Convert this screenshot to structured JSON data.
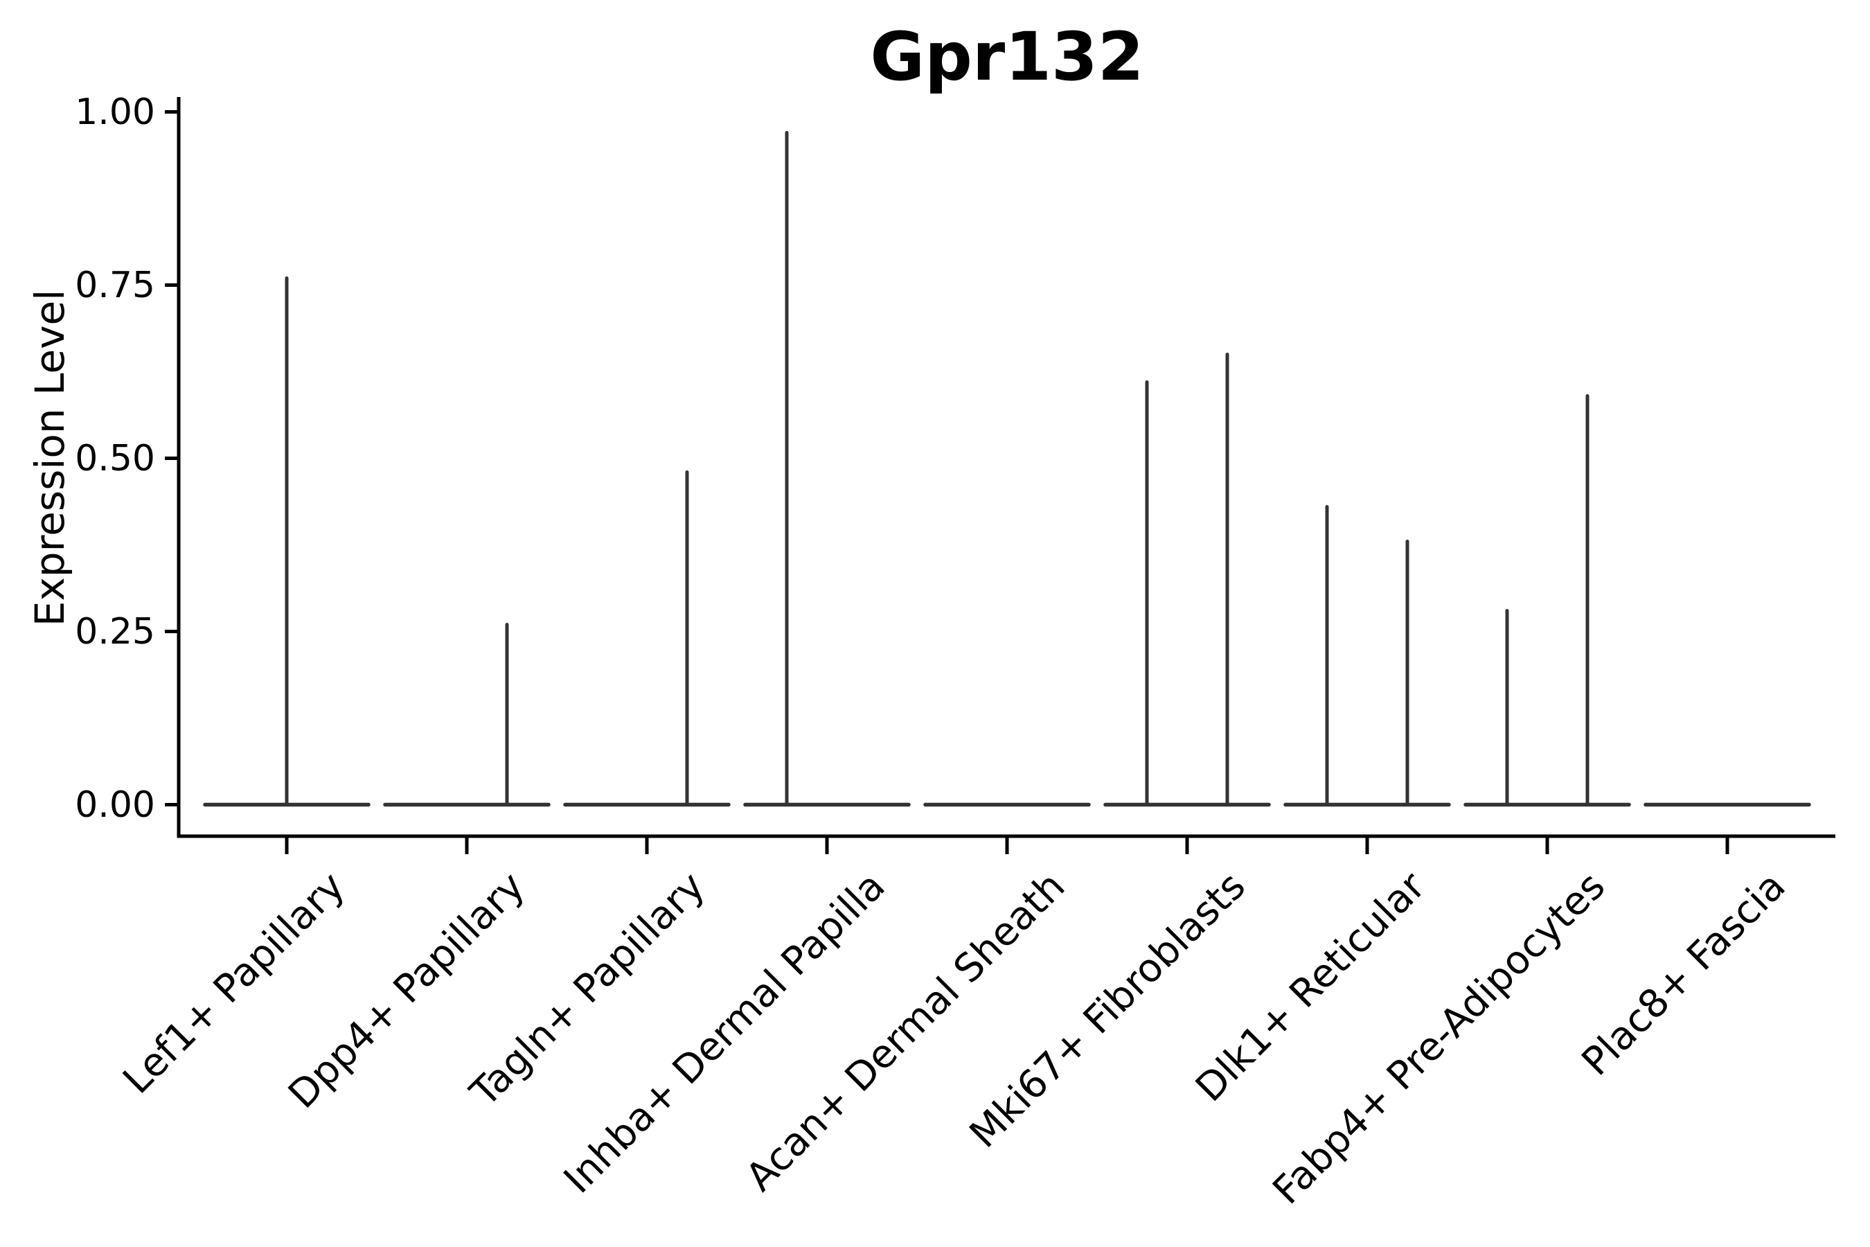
{
  "title": "Gpr132",
  "ylabel": "Expression Level",
  "colors": {
    "violin": "#333333",
    "axis": "#000000",
    "text": "#000000",
    "background": "#ffffff"
  },
  "chart_data": {
    "type": "violin",
    "title": "Gpr132",
    "xlabel": "",
    "ylabel": "Expression Level",
    "ylim": [
      0,
      1.0
    ],
    "yticks": [
      0.0,
      0.25,
      0.5,
      0.75,
      1.0
    ],
    "ytick_labels": [
      "0.00",
      "0.25",
      "0.50",
      "0.75",
      "1.00"
    ],
    "grid": false,
    "legend": false,
    "style_note": "Expression concentrated at 0: each violin collapses to a flat bar at y=0 with a thin vertical tail rising to the group's maximum; some categories contain two side-by-side sub-violins (left/right), each with its own tail.",
    "categories": [
      "Lef1+ Papillary",
      "Dpp4+ Papillary",
      "Tagln+ Papillary",
      "Inhba+ Dermal Papilla",
      "Acan+ Dermal Sheath",
      "Mki67+ Fibroblasts",
      "Dlk1+ Reticular",
      "Fabp4+ Pre-Adipocytes",
      "Plac8+ Fascia"
    ],
    "series": [
      {
        "category": "Lef1+ Papillary",
        "baseline": 0,
        "spikes": [
          {
            "offset": "center",
            "max": 0.76
          }
        ]
      },
      {
        "category": "Dpp4+ Papillary",
        "baseline": 0,
        "spikes": [
          {
            "offset": "right",
            "max": 0.26
          }
        ]
      },
      {
        "category": "Tagln+ Papillary",
        "baseline": 0,
        "spikes": [
          {
            "offset": "right",
            "max": 0.48
          }
        ]
      },
      {
        "category": "Inhba+ Dermal Papilla",
        "baseline": 0,
        "spikes": [
          {
            "offset": "left",
            "max": 0.97
          }
        ]
      },
      {
        "category": "Acan+ Dermal Sheath",
        "baseline": 0,
        "spikes": []
      },
      {
        "category": "Mki67+ Fibroblasts",
        "baseline": 0,
        "spikes": [
          {
            "offset": "left",
            "max": 0.61
          },
          {
            "offset": "right",
            "max": 0.65
          }
        ]
      },
      {
        "category": "Dlk1+ Reticular",
        "baseline": 0,
        "spikes": [
          {
            "offset": "left",
            "max": 0.43
          },
          {
            "offset": "right",
            "max": 0.38
          }
        ]
      },
      {
        "category": "Fabp4+ Pre-Adipocytes",
        "baseline": 0,
        "spikes": [
          {
            "offset": "left",
            "max": 0.28
          },
          {
            "offset": "right",
            "max": 0.59
          }
        ]
      },
      {
        "category": "Plac8+ Fascia",
        "baseline": 0,
        "spikes": []
      }
    ]
  }
}
